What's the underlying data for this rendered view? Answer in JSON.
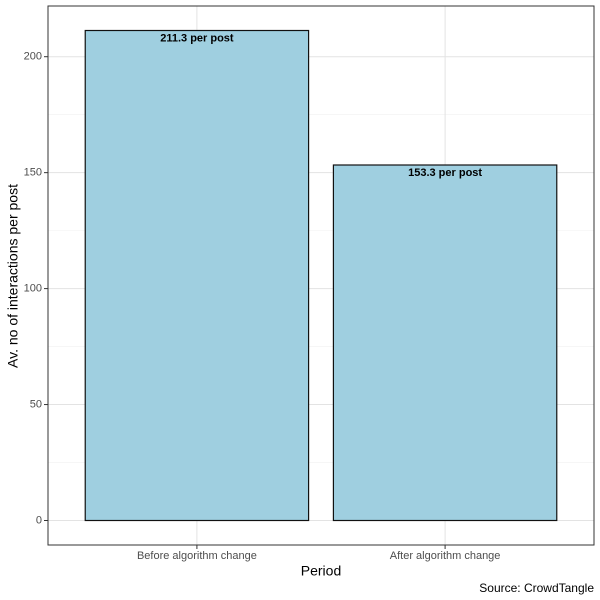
{
  "chart_data": {
    "type": "bar",
    "categories": [
      "Before algorithm change",
      "After algorithm change"
    ],
    "values": [
      211.3,
      153.3
    ],
    "value_labels": [
      "211.3 per post",
      "153.3 per post"
    ],
    "color": "#9fcfe0",
    "x_label": "Period",
    "y_label": "Av. no of interactions per post",
    "caption": "Source: CrowdTangle",
    "ylim": [
      -10.565,
      221.865
    ],
    "yticks": [
      0,
      50,
      100,
      150,
      200
    ],
    "minor_yticks": [
      25,
      75,
      125,
      175
    ],
    "grid": true
  }
}
